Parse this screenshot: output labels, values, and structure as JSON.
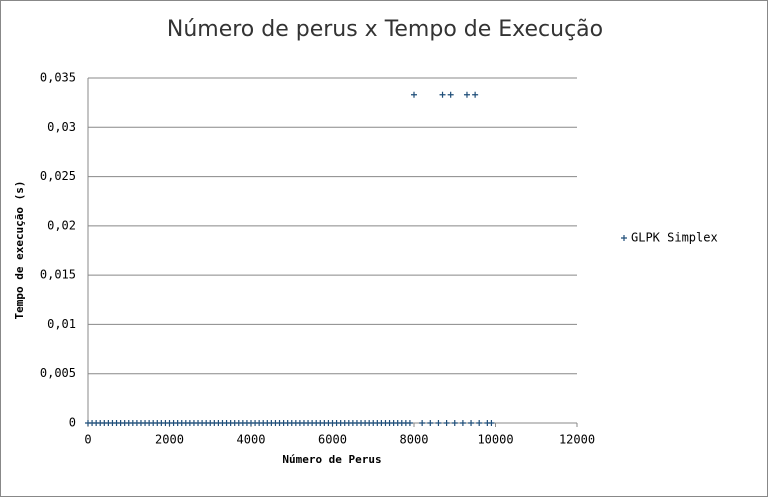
{
  "chart_data": {
    "type": "scatter",
    "title": "Número de perus x Tempo de Execução",
    "x_label": "Número de Perus",
    "y_label": "Tempo de execução (s)",
    "x": [
      0,
      100,
      200,
      300,
      400,
      500,
      600,
      700,
      800,
      900,
      1000,
      1100,
      1200,
      1300,
      1400,
      1500,
      1600,
      1700,
      1800,
      1900,
      2000,
      2100,
      2200,
      2300,
      2400,
      2500,
      2600,
      2700,
      2800,
      2900,
      3000,
      3100,
      3200,
      3300,
      3400,
      3500,
      3600,
      3700,
      3800,
      3900,
      4000,
      4100,
      4200,
      4300,
      4400,
      4500,
      4600,
      4700,
      4800,
      4900,
      5000,
      5100,
      5200,
      5300,
      5400,
      5500,
      5600,
      5700,
      5800,
      5900,
      6000,
      6100,
      6200,
      6300,
      6400,
      6500,
      6600,
      6700,
      6800,
      6900,
      7000,
      7100,
      7200,
      7300,
      7400,
      7500,
      7600,
      7700,
      7800,
      7900,
      8000,
      8200,
      8400,
      8600,
      8700,
      8800,
      8900,
      9000,
      9200,
      9300,
      9400,
      9500,
      9600,
      9800,
      9900
    ],
    "series": [
      {
        "name": "GLPK Simplex",
        "color": "#1f4e79",
        "values": [
          0,
          0,
          0,
          0,
          0,
          0,
          0,
          0,
          0,
          0,
          0,
          0,
          0,
          0,
          0,
          0,
          0,
          0,
          0,
          0,
          0,
          0,
          0,
          0,
          0,
          0,
          0,
          0,
          0,
          0,
          0,
          0,
          0,
          0,
          0,
          0,
          0,
          0,
          0,
          0,
          0,
          0,
          0,
          0,
          0,
          0,
          0,
          0,
          0,
          0,
          0,
          0,
          0,
          0,
          0,
          0,
          0,
          0,
          0,
          0,
          0,
          0,
          0,
          0,
          0,
          0,
          0,
          0,
          0,
          0,
          0,
          0,
          0,
          0,
          0,
          0,
          0,
          0,
          0,
          0,
          0.0333,
          0,
          0,
          0,
          0.0333,
          0,
          0.0333,
          0,
          0,
          0.0333,
          0,
          0.0333,
          0,
          0,
          0
        ]
      }
    ],
    "xlim": [
      0,
      12000
    ],
    "xticks": [
      0,
      2000,
      4000,
      6000,
      8000,
      10000,
      12000
    ],
    "ylim": [
      0,
      0.035
    ],
    "yticks": [
      0,
      {
        "value": 0.005,
        "label": "0,005"
      },
      {
        "value": 0.01,
        "label": "0,01"
      },
      {
        "value": 0.015,
        "label": "0,015"
      },
      {
        "value": 0.02,
        "label": "0,02"
      },
      {
        "value": 0.025,
        "label": "0,025"
      },
      {
        "value": 0.03,
        "label": "0,03"
      },
      {
        "value": 0.035,
        "label": "0,035"
      }
    ],
    "grid": true,
    "legend": "right"
  }
}
